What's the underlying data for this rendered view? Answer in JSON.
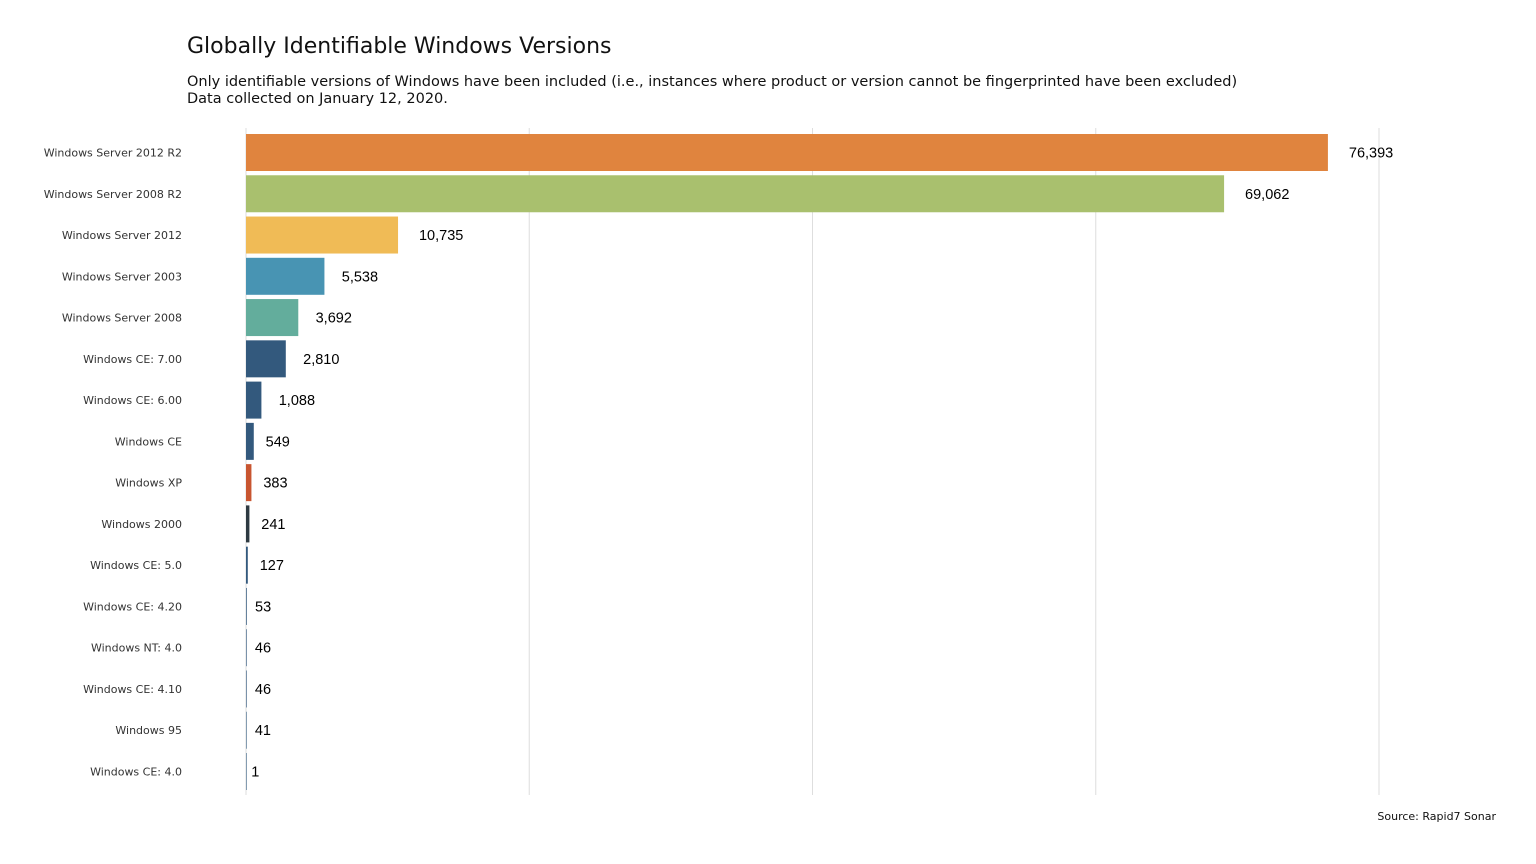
{
  "chart_data": {
    "type": "bar",
    "orientation": "horizontal",
    "title": "Globally Identifiable Windows Versions",
    "subtitle": [
      "Only identifiable versions of Windows have been included (i.e., instances where product or version cannot be fingerprinted have been excluded)",
      "Data collected on January 12, 2020."
    ],
    "caption": "Source: Rapid7 Sonar",
    "xlabel": "",
    "ylabel": "",
    "xlim": [
      0,
      80000
    ],
    "grid": true,
    "legend": "none",
    "categories": [
      "Windows Server 2012 R2",
      "Windows Server 2008 R2",
      "Windows Server 2012",
      "Windows Server 2003",
      "Windows Server 2008",
      "Windows CE: 7.00",
      "Windows CE: 6.00",
      "Windows CE",
      "Windows XP",
      "Windows 2000",
      "Windows CE: 5.0",
      "Windows CE: 4.20",
      "Windows NT: 4.0",
      "Windows CE: 4.10",
      "Windows 95",
      "Windows CE: 4.0"
    ],
    "values": [
      76393,
      69062,
      10735,
      5538,
      3692,
      2810,
      1088,
      549,
      383,
      241,
      127,
      53,
      46,
      46,
      41,
      1
    ],
    "value_labels": [
      "76,393",
      "69,062",
      "10,735",
      "5,538",
      "3,692",
      "2,810",
      "1,088",
      "549",
      "383",
      "241",
      "127",
      "53",
      "46",
      "46",
      "41",
      "1"
    ],
    "colors": [
      "#e0843e",
      "#a9c06e",
      "#f0bb56",
      "#4894b3",
      "#63ad9c",
      "#33597d",
      "#33597d",
      "#33597d",
      "#c85530",
      "#2e3a42",
      "#33597d",
      "#33597d",
      "#33597d",
      "#33597d",
      "#33597d",
      "#33597d"
    ],
    "grid_color": "#dedede"
  }
}
